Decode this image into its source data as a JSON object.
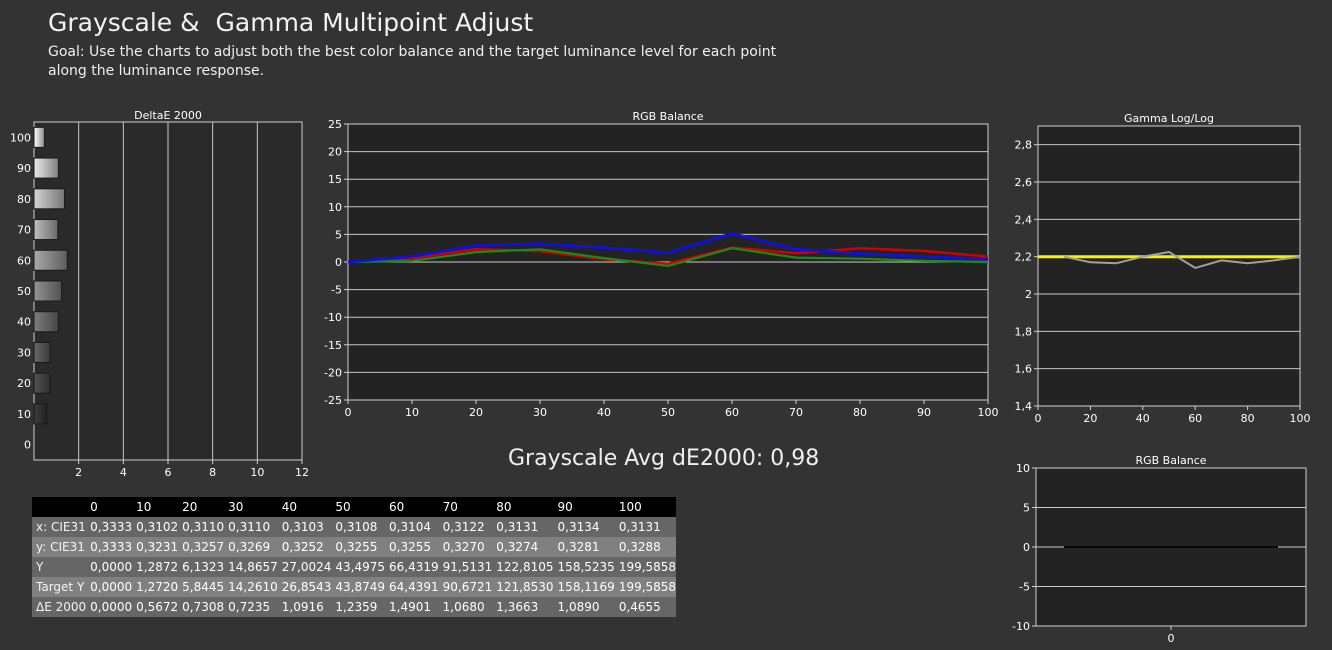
{
  "header": {
    "title": "Grayscale &  Gamma Multipoint Adjust",
    "goal": "Goal: Use the charts to adjust both the best color balance and the target luminance level for each point along the luminance response."
  },
  "summary": {
    "avg_text": "Grayscale Avg dE2000: 0,98"
  },
  "colors": {
    "red": "#d00000",
    "green": "#1a8a1a",
    "blue": "#1010e0",
    "gamma": "#f5f500",
    "measured_gamma": "#a0a0a0"
  },
  "table": {
    "columns": [
      "0",
      "10",
      "20",
      "30",
      "40",
      "50",
      "60",
      "70",
      "80",
      "90",
      "100"
    ],
    "rows": [
      {
        "label": "x: CIE31",
        "values": [
          "0,3333",
          "0,3102",
          "0,3110",
          "0,3110",
          "0,3103",
          "0,3108",
          "0,3104",
          "0,3122",
          "0,3131",
          "0,3134",
          "0,3131"
        ]
      },
      {
        "label": "y: CIE31",
        "values": [
          "0,3333",
          "0,3231",
          "0,3257",
          "0,3269",
          "0,3252",
          "0,3255",
          "0,3255",
          "0,3270",
          "0,3274",
          "0,3281",
          "0,3288"
        ]
      },
      {
        "label": "Y",
        "values": [
          "0,0000",
          "1,2872",
          "6,1323",
          "14,8657",
          "27,0024",
          "43,4975",
          "66,4319",
          "91,5131",
          "122,8105",
          "158,5235",
          "199,5858"
        ]
      },
      {
        "label": "Target Y",
        "values": [
          "0,0000",
          "1,2720",
          "5,8445",
          "14,2610",
          "26,8543",
          "43,8749",
          "64,4391",
          "90,6721",
          "121,8530",
          "158,1169",
          "199,5858"
        ]
      },
      {
        "label": "ΔE 2000",
        "values": [
          "0,0000",
          "0,5672",
          "0,7308",
          "0,7235",
          "1,0916",
          "1,2359",
          "1,4901",
          "1,0680",
          "1,3663",
          "1,0890",
          "0,4655"
        ]
      }
    ]
  },
  "chart_data": [
    {
      "type": "bar",
      "title": "DeltaE 2000",
      "orientation": "horizontal",
      "categories": [
        "100",
        "90",
        "80",
        "70",
        "60",
        "50",
        "40",
        "30",
        "20",
        "10",
        "0"
      ],
      "values": [
        0.4655,
        1.089,
        1.3663,
        1.068,
        1.4901,
        1.2359,
        1.0916,
        0.7235,
        0.7308,
        0.5672,
        0.0
      ],
      "xlim": [
        0,
        12
      ],
      "xticks": [
        "2",
        "4",
        "6",
        "8",
        "10",
        "12"
      ],
      "grid": true
    },
    {
      "type": "line",
      "title": "RGB Balance",
      "x": [
        0,
        10,
        20,
        30,
        40,
        50,
        60,
        70,
        80,
        90,
        100
      ],
      "xticks": [
        "0",
        "10",
        "20",
        "30",
        "40",
        "50",
        "60",
        "70",
        "80",
        "90",
        "100"
      ],
      "yticks": [
        "25",
        "20",
        "15",
        "10",
        "5",
        "0",
        "-5",
        "-10",
        "-15",
        "-20",
        "-25"
      ],
      "ylim": [
        -25,
        25
      ],
      "series": [
        {
          "color": "red",
          "values": [
            0,
            0.7,
            2.3,
            2.0,
            0.5,
            -0.3,
            2.6,
            1.6,
            2.5,
            2.0,
            1.0
          ]
        },
        {
          "color": "green",
          "values": [
            0,
            0.2,
            1.8,
            2.3,
            0.7,
            -0.7,
            2.5,
            0.8,
            0.6,
            0.2,
            0.0
          ]
        },
        {
          "color": "blue",
          "values": [
            0,
            1.0,
            3.0,
            3.3,
            2.6,
            1.7,
            5.2,
            2.3,
            1.5,
            1.0,
            0.5
          ]
        }
      ],
      "grid": true
    },
    {
      "type": "line",
      "title": "Gamma Log/Log",
      "x": [
        0,
        10,
        20,
        30,
        40,
        50,
        60,
        70,
        80,
        90,
        100
      ],
      "xticks": [
        "0",
        "20",
        "40",
        "60",
        "80",
        "100"
      ],
      "yticks": [
        "2,8",
        "2,6",
        "2,4",
        "2,2",
        "2",
        "1,8",
        "1,6",
        "1,4"
      ],
      "ylim": [
        1.4,
        2.9
      ],
      "series": [
        {
          "color": "yellow",
          "values": [
            2.2,
            2.2,
            2.2,
            2.2,
            2.2,
            2.2,
            2.2,
            2.2,
            2.2,
            2.2,
            2.2
          ]
        },
        {
          "color": "gray",
          "values": [
            null,
            2.2,
            2.17,
            2.165,
            2.2,
            2.225,
            2.14,
            2.18,
            2.165,
            2.18,
            2.2
          ]
        }
      ],
      "grid": true
    },
    {
      "type": "line",
      "title": "RGB Balance",
      "xticks": [
        "0"
      ],
      "yticks": [
        "10",
        "5",
        "0",
        "-5",
        "-10"
      ],
      "ylim": [
        -10,
        10
      ],
      "series": [
        {
          "color": "black",
          "values": [
            0,
            0
          ]
        }
      ],
      "grid": true
    }
  ]
}
